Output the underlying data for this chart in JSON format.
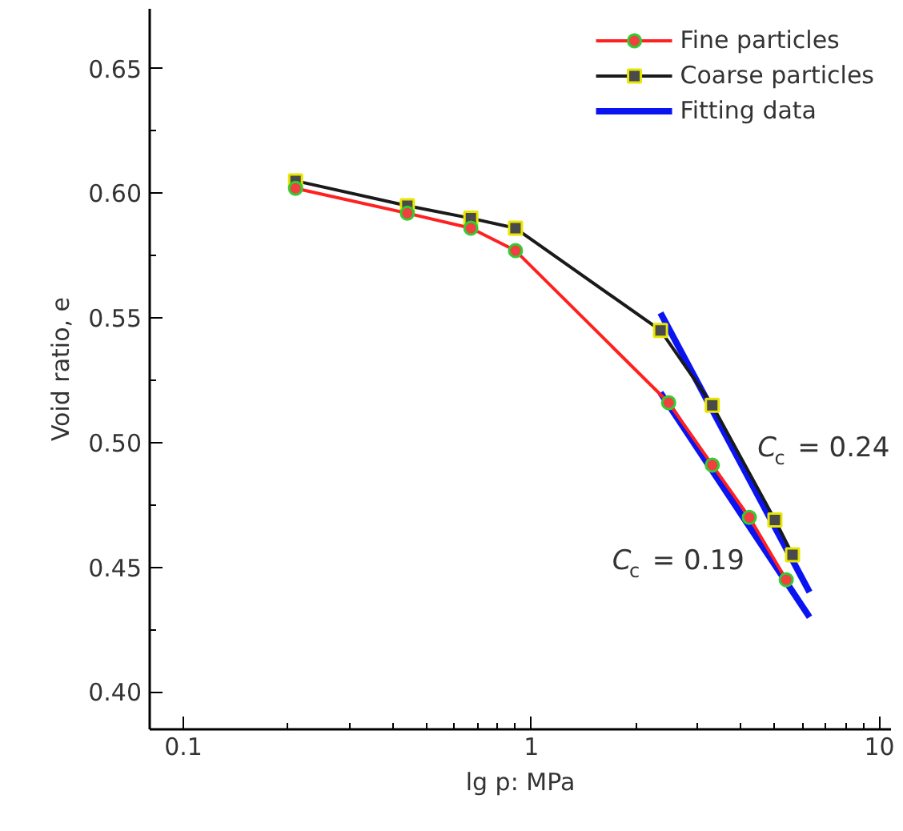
{
  "chart_data": {
    "type": "line",
    "xlabel": "lg p: MPa",
    "ylabel": "Void ratio, e",
    "log": "x",
    "legend": "top right",
    "grid": false,
    "xlim": [
      0.08,
      10.8
    ],
    "ylim": [
      0.385,
      0.674
    ],
    "xticks": [
      {
        "value": 0.1,
        "label": "0.1"
      },
      {
        "value": 0.2,
        "label": null
      },
      {
        "value": 0.3,
        "label": null
      },
      {
        "value": 0.4,
        "label": null
      },
      {
        "value": 0.5,
        "label": null
      },
      {
        "value": 0.6,
        "label": null
      },
      {
        "value": 0.7,
        "label": null
      },
      {
        "value": 0.8,
        "label": null
      },
      {
        "value": 0.9,
        "label": null
      },
      {
        "value": 1,
        "label": "1"
      },
      {
        "value": 2,
        "label": null
      },
      {
        "value": 3,
        "label": null
      },
      {
        "value": 4,
        "label": null
      },
      {
        "value": 5,
        "label": null
      },
      {
        "value": 6,
        "label": null
      },
      {
        "value": 7,
        "label": null
      },
      {
        "value": 8,
        "label": null
      },
      {
        "value": 9,
        "label": null
      },
      {
        "value": 10,
        "label": "10"
      }
    ],
    "yticks": [
      {
        "value": 0.4,
        "label": "0.40"
      },
      {
        "value": 0.425,
        "label": null
      },
      {
        "value": 0.45,
        "label": "0.45"
      },
      {
        "value": 0.475,
        "label": null
      },
      {
        "value": 0.5,
        "label": "0.50"
      },
      {
        "value": 0.525,
        "label": null
      },
      {
        "value": 0.55,
        "label": "0.55"
      },
      {
        "value": 0.575,
        "label": null
      },
      {
        "value": 0.6,
        "label": "0.60"
      },
      {
        "value": 0.625,
        "label": null
      },
      {
        "value": 0.65,
        "label": "0.65"
      }
    ],
    "series": [
      {
        "name": "Fine particles",
        "color": "#ff2020",
        "marker": "circle",
        "x": [
          0.21,
          0.44,
          0.67,
          0.9,
          2.48,
          3.31,
          4.23,
          5.4
        ],
        "values": [
          0.602,
          0.592,
          0.586,
          0.577,
          0.516,
          0.491,
          0.47,
          0.445
        ]
      },
      {
        "name": "Coarse particles",
        "color": "#1a1a1a",
        "marker": "square",
        "x": [
          0.21,
          0.44,
          0.67,
          0.9,
          2.35,
          3.31,
          5.01,
          5.63
        ],
        "values": [
          0.605,
          0.595,
          0.59,
          0.586,
          0.545,
          0.515,
          0.469,
          0.455
        ]
      },
      {
        "name": "Fitting data",
        "color": "#0a14f0",
        "marker": "none",
        "x": [
          2.35,
          6.3
        ],
        "values": [
          0.52,
          0.43
        ]
      },
      {
        "color": "#0a14f0",
        "marker": "none",
        "x": [
          2.35,
          6.3
        ],
        "values": [
          0.552,
          0.44
        ]
      }
    ],
    "annotations": [
      "C$_{c}$ = 0.24",
      "C$_{c}$ = 0.19"
    ]
  }
}
